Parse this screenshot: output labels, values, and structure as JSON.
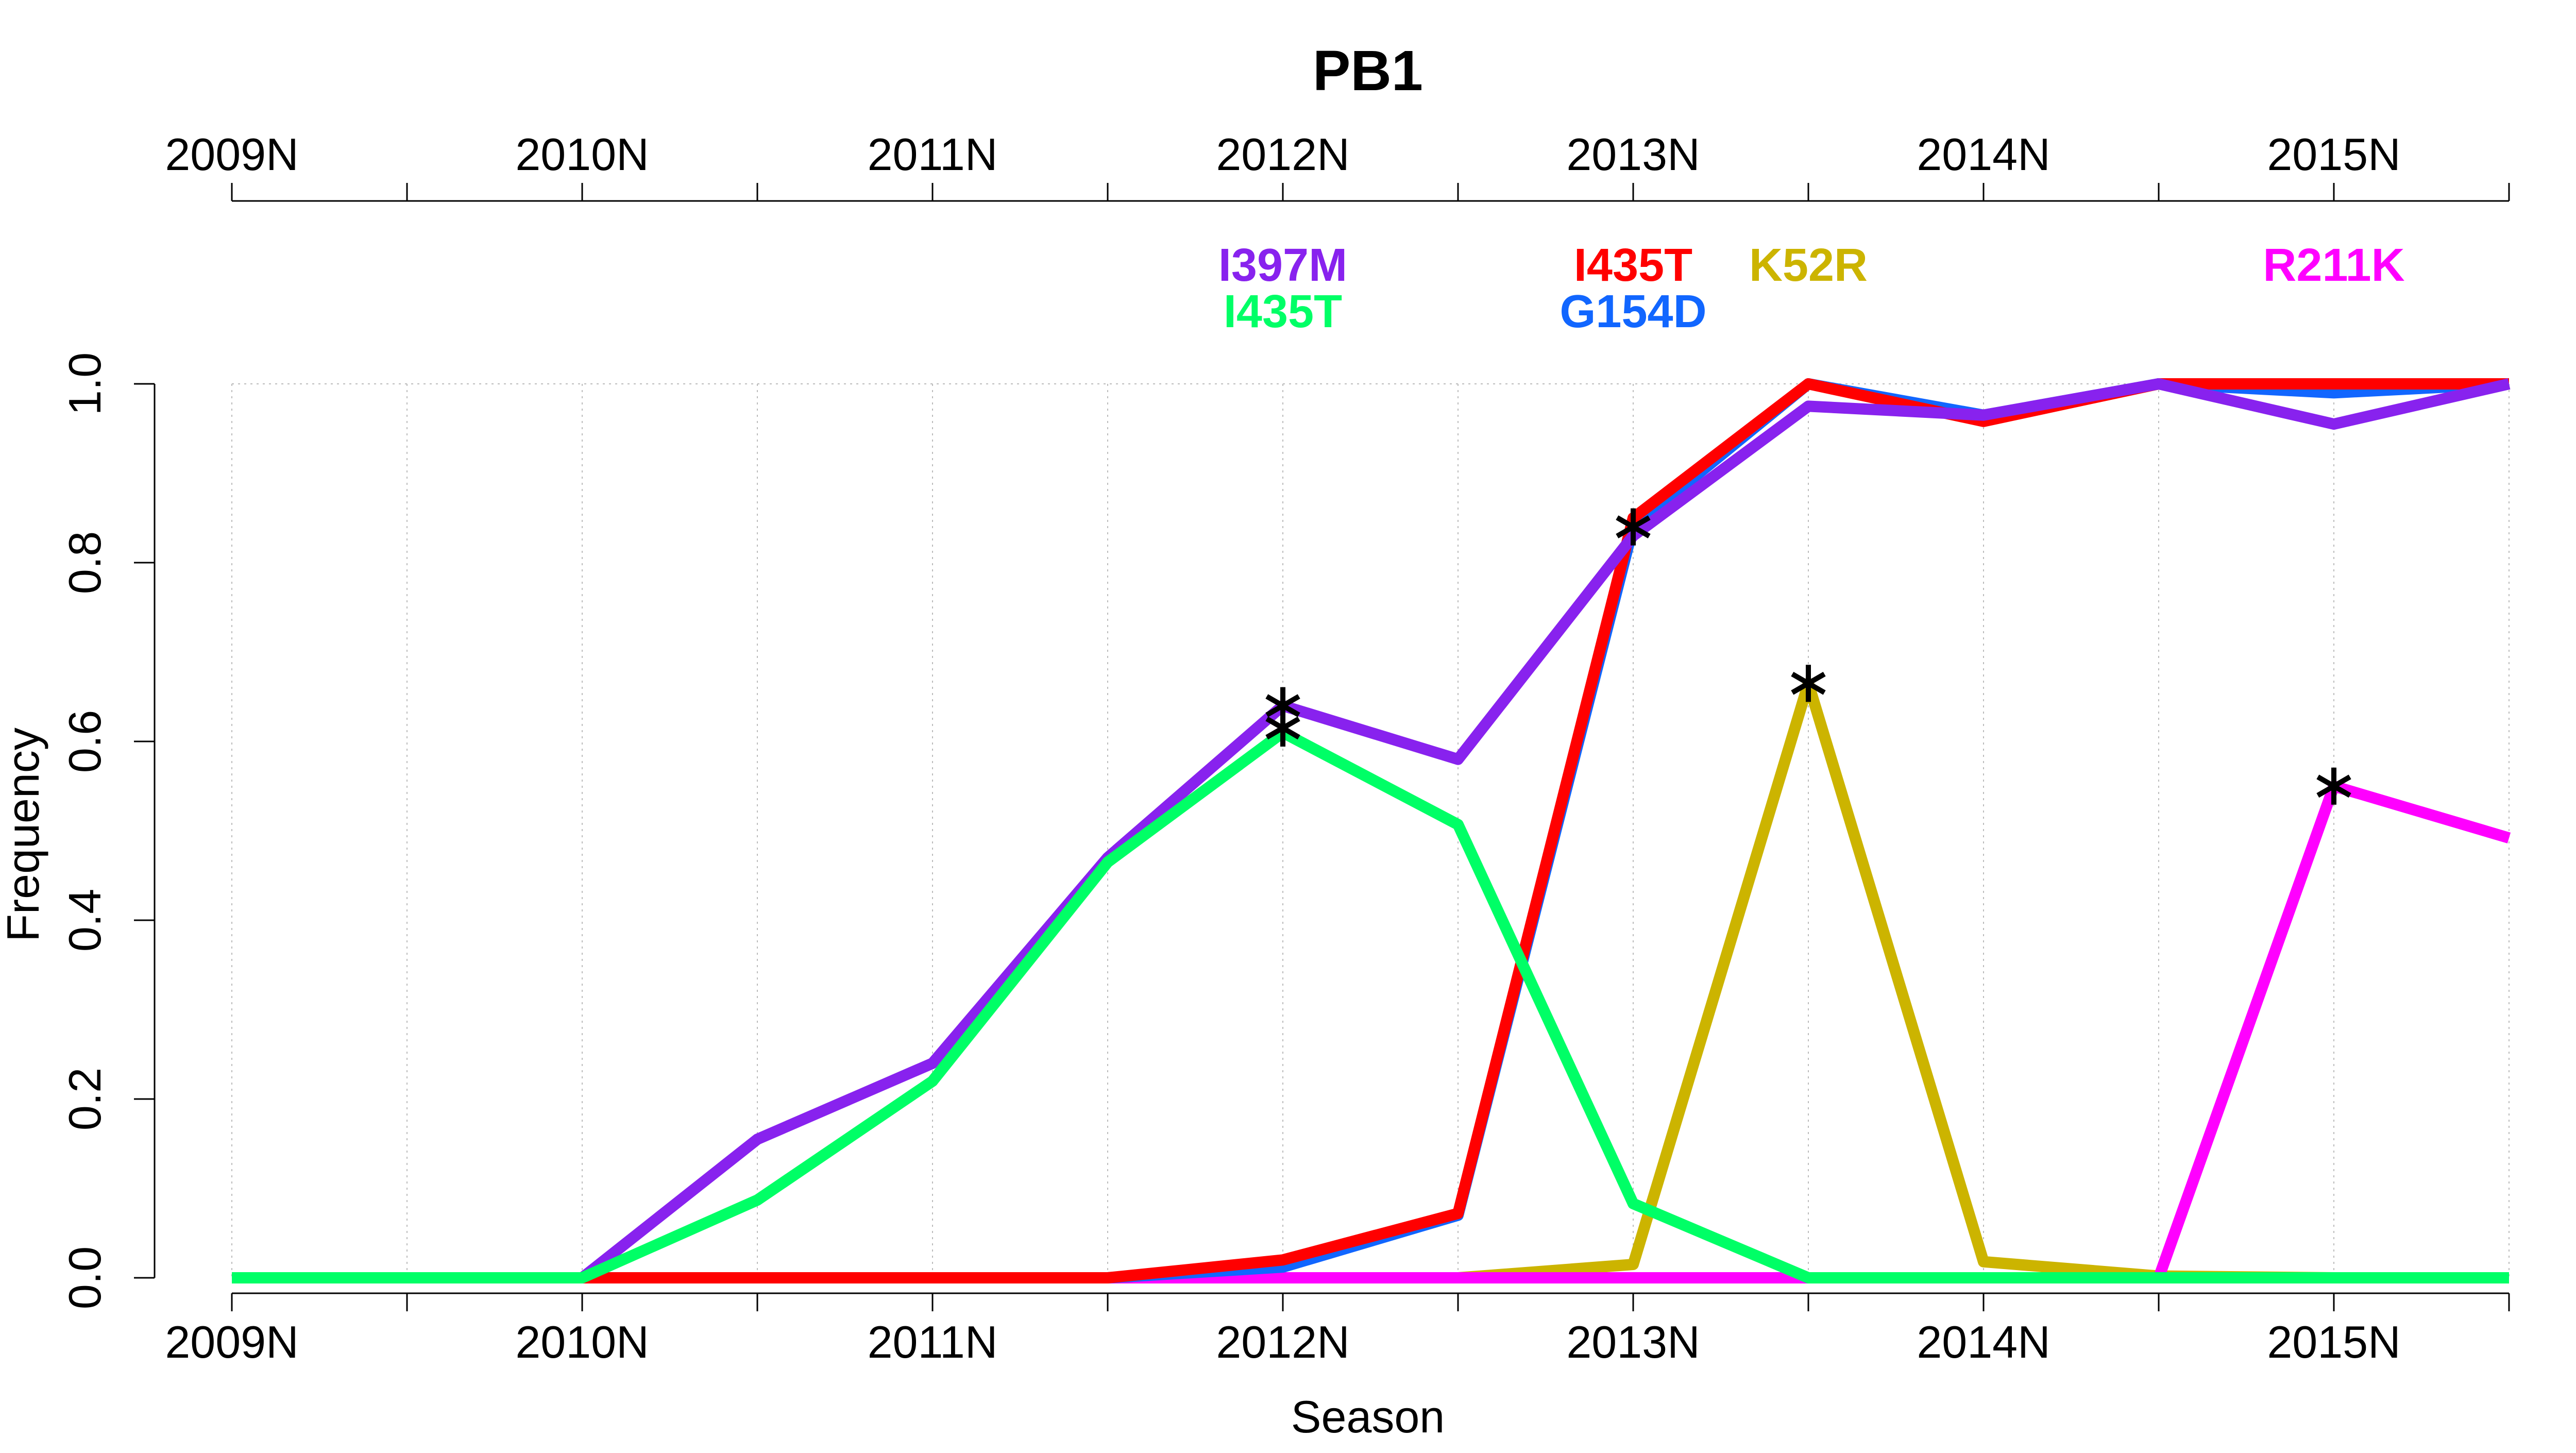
{
  "chart_data": {
    "type": "line",
    "title": "PB1",
    "xlabel": "Season",
    "ylabel": "Frequency",
    "x_ticks": [
      "2009N",
      "2009S",
      "2010N",
      "2010S",
      "2011N",
      "2011S",
      "2012N",
      "2012S",
      "2013N",
      "2013S",
      "2014N",
      "2014S",
      "2015N",
      "2015S"
    ],
    "x_tick_labels": [
      "2009N",
      "",
      "2010N",
      "",
      "2011N",
      "",
      "2012N",
      "",
      "2013N",
      "",
      "2014N",
      "",
      "2015N",
      ""
    ],
    "ylim": [
      0,
      1
    ],
    "y_ticks": [
      "0.0",
      "0.2",
      "0.4",
      "0.6",
      "0.8",
      "1.0"
    ],
    "grid": true,
    "series": [
      {
        "name": "K52R",
        "color": "#CCB400",
        "values": [
          0,
          0,
          0,
          0,
          0,
          0,
          0,
          0,
          0.015,
          0.665,
          0.018,
          0.002,
          0,
          0
        ]
      },
      {
        "name": "R211K",
        "color": "#FF00FF",
        "values": [
          0,
          0,
          0,
          0,
          0,
          0,
          0,
          0,
          0,
          0,
          0,
          0,
          0.55,
          0.492
        ]
      },
      {
        "name": "G154D",
        "color": "#1166FF",
        "values": [
          0,
          0,
          0,
          0,
          0,
          0,
          0.012,
          0.07,
          0.84,
          1.0,
          0.965,
          1.0,
          0.99,
          1.0
        ]
      },
      {
        "name": "I435T",
        "color": "#FF0000",
        "values": [
          0,
          0,
          0,
          0,
          0,
          0,
          0.02,
          0.072,
          0.85,
          1.0,
          0.958,
          1.0,
          1.0,
          1.0
        ]
      },
      {
        "name": "I397M",
        "color": "#8822EE",
        "values": [
          0,
          0,
          0,
          0.155,
          0.24,
          0.47,
          0.64,
          0.58,
          0.83,
          0.975,
          0.965,
          1.0,
          0.955,
          1.0
        ]
      },
      {
        "name": "I435T",
        "color": "#00FF66",
        "values": [
          0,
          0,
          0,
          0.087,
          0.22,
          0.465,
          0.61,
          0.507,
          0.083,
          0,
          0,
          0,
          0,
          0
        ]
      }
    ],
    "markers": [
      {
        "x": "2012N",
        "y": 0.64
      },
      {
        "x": "2012N",
        "y": 0.615
      },
      {
        "x": "2013N",
        "y": 0.84
      },
      {
        "x": "2013S",
        "y": 0.665
      },
      {
        "x": "2015N",
        "y": 0.55
      }
    ],
    "annotations": [
      {
        "text": "I397M",
        "x": "2012N",
        "row": 1,
        "color": "#8822EE"
      },
      {
        "text": "I435T",
        "x": "2012N",
        "row": 2,
        "color": "#00FF66"
      },
      {
        "text": "I435T",
        "x": "2013N",
        "row": 1,
        "color": "#FF0000"
      },
      {
        "text": "G154D",
        "x": "2013N",
        "row": 2,
        "color": "#1166FF"
      },
      {
        "text": "K52R",
        "x": "2013S",
        "row": 1,
        "color": "#CCB400"
      },
      {
        "text": "R211K",
        "x": "2015N",
        "row": 1,
        "color": "#FF00FF"
      }
    ]
  }
}
